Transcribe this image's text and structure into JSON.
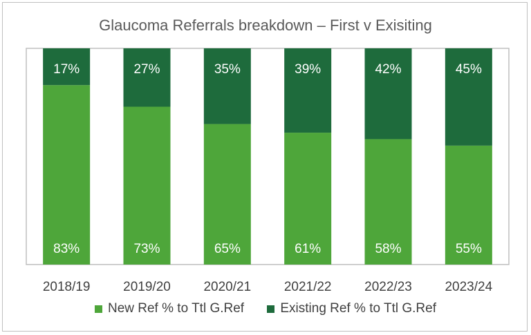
{
  "chart_data": {
    "type": "bar",
    "stacked": true,
    "title": "Glaucoma Referrals breakdown – First v Exisiting",
    "categories": [
      "2018/19",
      "2019/20",
      "2020/21",
      "2021/22",
      "2022/23",
      "2023/24"
    ],
    "series": [
      {
        "name": "New Ref % to Ttl G.Ref",
        "color": "#4ea63a",
        "values": [
          83,
          73,
          65,
          61,
          58,
          55
        ],
        "labels": [
          "83%",
          "73%",
          "65%",
          "61%",
          "58%",
          "55%"
        ]
      },
      {
        "name": "Existing Ref % to Ttl G.Ref",
        "color": "#1e6b3c",
        "values": [
          17,
          27,
          35,
          39,
          42,
          45
        ],
        "labels": [
          "17%",
          "27%",
          "35%",
          "39%",
          "42%",
          "45%"
        ]
      }
    ],
    "ylim": [
      0,
      100
    ],
    "legend_position": "bottom",
    "grid": false
  }
}
